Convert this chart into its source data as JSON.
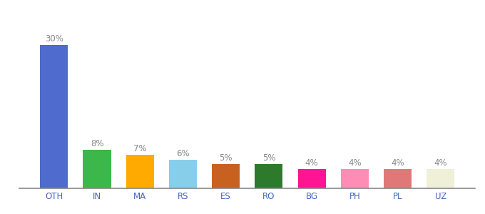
{
  "categories": [
    "OTH",
    "IN",
    "MA",
    "RS",
    "ES",
    "RO",
    "BG",
    "PH",
    "PL",
    "UZ"
  ],
  "values": [
    30,
    8,
    7,
    6,
    5,
    5,
    4,
    4,
    4,
    4
  ],
  "bar_colors": [
    "#4f6bcd",
    "#3cb84a",
    "#ffaa00",
    "#87ceeb",
    "#c86020",
    "#2d7a2d",
    "#ff1493",
    "#ff8cb4",
    "#e07878",
    "#f0f0d8"
  ],
  "ylim": [
    0,
    34
  ],
  "background_color": "#ffffff",
  "label_fontsize": 8.5,
  "tick_fontsize": 8.5,
  "label_color": "#888888",
  "tick_color": "#4466bb"
}
